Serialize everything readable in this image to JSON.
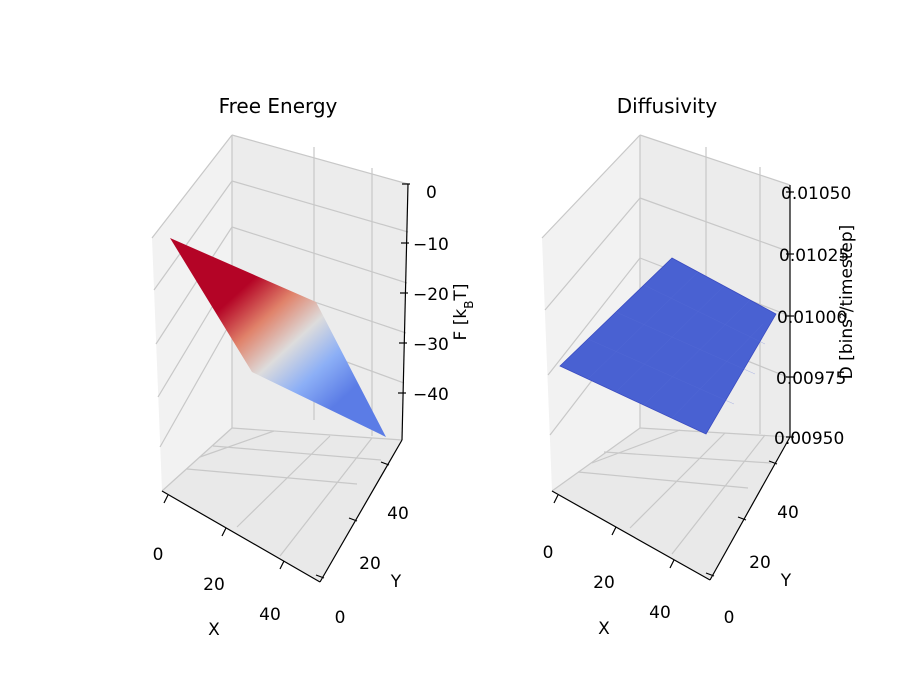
{
  "chart_data": [
    {
      "type": "surface3d",
      "title": "Free Energy",
      "xlabel": "X",
      "ylabel": "Y",
      "zlabel": "F [k_BT]",
      "zlabel_parts": [
        "F [k",
        "B",
        "T]"
      ],
      "colormap": "coolwarm",
      "x_ticks": [
        "0",
        "20",
        "40"
      ],
      "y_ticks": [
        "0",
        "20",
        "40"
      ],
      "z_ticks": [
        "0",
        "−10",
        "−20",
        "−30",
        "−40"
      ],
      "xlim": [
        0,
        50
      ],
      "ylim": [
        0,
        50
      ],
      "zlim": [
        -48,
        0
      ],
      "surface": {
        "description_values": {
          "x_range": [
            0,
            50
          ],
          "y_range": [
            0,
            50
          ],
          "z_at_x0": 0,
          "z_at_x50": -48
        }
      }
    },
    {
      "type": "surface3d",
      "title": "Diffusivity",
      "xlabel": "X",
      "ylabel": "Y",
      "zlabel": "D [bins²/timestep]",
      "colormap": "coolwarm",
      "x_ticks": [
        "0",
        "20",
        "40"
      ],
      "y_ticks": [
        "0",
        "20",
        "40"
      ],
      "z_ticks": [
        "0.00950",
        "0.00975",
        "0.01000",
        "0.01025",
        "0.01050"
      ],
      "xlim": [
        0,
        50
      ],
      "ylim": [
        0,
        50
      ],
      "zlim": [
        0.0095,
        0.0105
      ],
      "surface": {
        "constant_value": 0.01
      }
    }
  ]
}
